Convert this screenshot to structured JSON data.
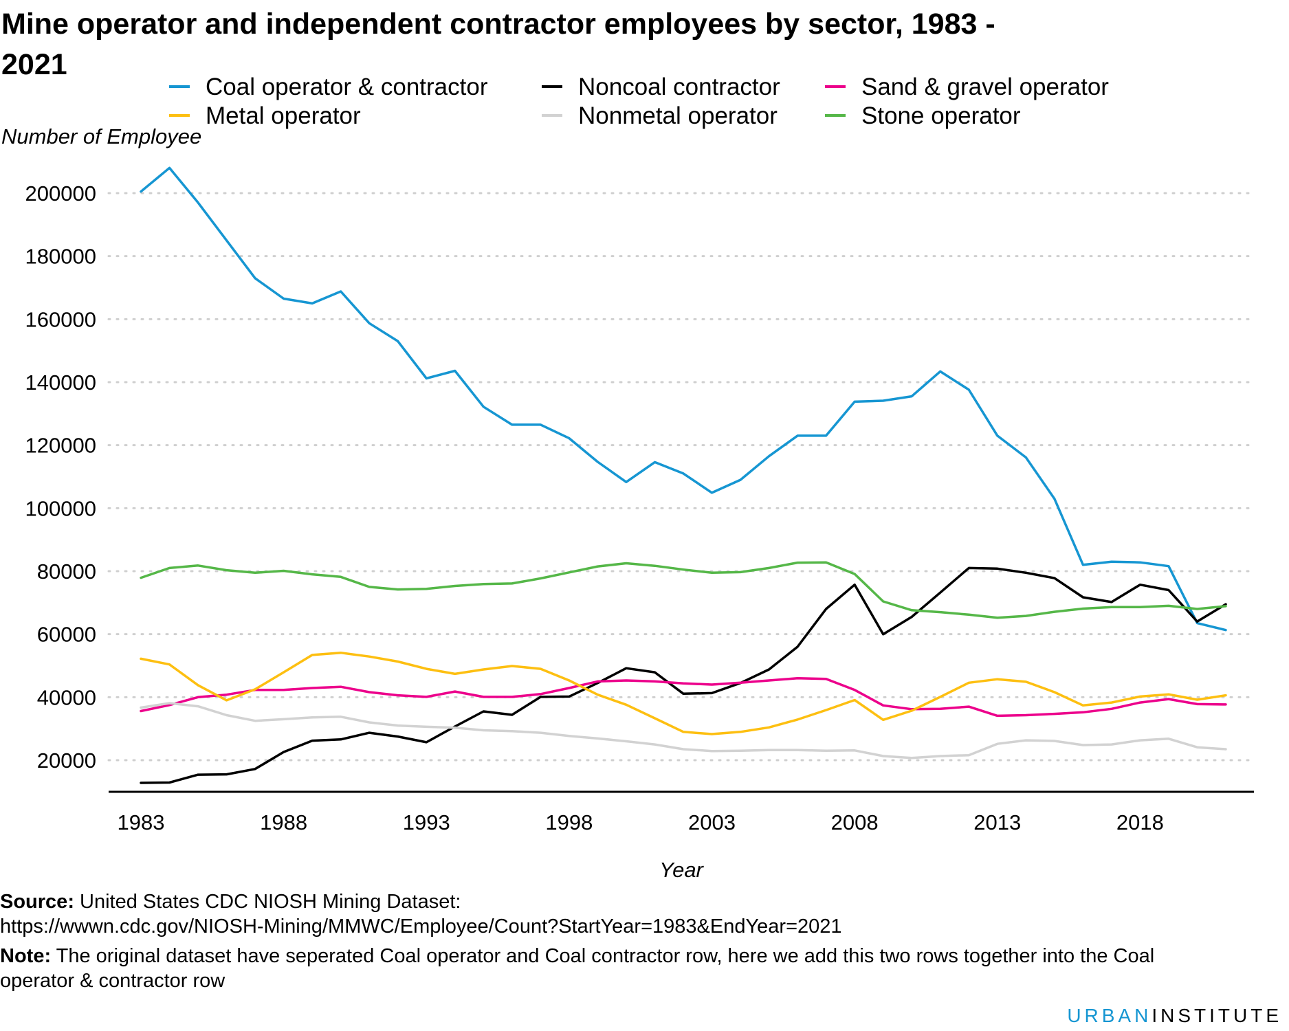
{
  "chart_data": {
    "type": "line",
    "title": "Mine operator and independent contractor employees by sector, 1983 - 2021",
    "title_line1": "Mine operator and independent contractor employees by sector, 1983 -",
    "title_line2": "2021",
    "xlabel": "Year",
    "ylabel": "Number of Employee",
    "x": [
      1983,
      1984,
      1985,
      1986,
      1987,
      1988,
      1989,
      1990,
      1991,
      1992,
      1993,
      1994,
      1995,
      1996,
      1997,
      1998,
      1999,
      2000,
      2001,
      2002,
      2003,
      2004,
      2005,
      2006,
      2007,
      2008,
      2009,
      2010,
      2011,
      2012,
      2013,
      2014,
      2015,
      2016,
      2017,
      2018,
      2019,
      2020,
      2021
    ],
    "xticks": [
      "1983",
      "1988",
      "1993",
      "1998",
      "2003",
      "2008",
      "2013",
      "2018"
    ],
    "xtick_values": [
      1983,
      1988,
      1993,
      1998,
      2003,
      2008,
      2013,
      2018
    ],
    "yticks": [
      "20000",
      "40000",
      "60000",
      "80000",
      "100000",
      "120000",
      "140000",
      "160000",
      "180000",
      "200000"
    ],
    "ytick_values": [
      20000,
      40000,
      60000,
      80000,
      100000,
      120000,
      140000,
      160000,
      180000,
      200000
    ],
    "xlim": [
      1983,
      2021
    ],
    "ylim": [
      10000,
      210000
    ],
    "grid": "horizontal dotted",
    "legend_position": "top",
    "series": [
      {
        "name": "Coal operator & contractor",
        "color": "#1696d2",
        "values": [
          200500,
          208000,
          197000,
          185000,
          173000,
          166500,
          165000,
          168800,
          158700,
          153000,
          141200,
          143600,
          132200,
          126500,
          126500,
          122200,
          114700,
          108300,
          114600,
          111000,
          104900,
          109000,
          116500,
          123000,
          123000,
          133800,
          134100,
          135500,
          143400,
          137600,
          123000,
          116100,
          103000,
          82000,
          83000,
          82800,
          81600,
          63500,
          61300
        ]
      },
      {
        "name": "Noncoal contractor",
        "color": "#000000",
        "values": [
          12800,
          12900,
          15400,
          15500,
          17200,
          22600,
          26200,
          26600,
          28700,
          27500,
          25700,
          30700,
          35500,
          34400,
          40100,
          40200,
          44500,
          49200,
          47900,
          41100,
          41300,
          44500,
          48800,
          56000,
          68000,
          75700,
          60000,
          65500,
          73200,
          81000,
          80800,
          79500,
          77800,
          71700,
          70200,
          75700,
          74000,
          64000,
          69500
        ]
      },
      {
        "name": "Sand & gravel operator",
        "color": "#ec008b",
        "values": [
          35600,
          37500,
          40000,
          40800,
          42300,
          42300,
          42900,
          43300,
          41600,
          40600,
          40100,
          41800,
          40100,
          40100,
          41000,
          42900,
          45000,
          45300,
          45000,
          44400,
          44000,
          44600,
          45300,
          46000,
          45800,
          42300,
          37400,
          36200,
          36300,
          37000,
          34100,
          34300,
          34700,
          35200,
          36300,
          38300,
          39400,
          37800,
          37700
        ]
      },
      {
        "name": "Metal operator",
        "color": "#fdbf11",
        "values": [
          52200,
          50400,
          43800,
          39000,
          42500,
          47900,
          53400,
          54100,
          52900,
          51300,
          49000,
          47400,
          48800,
          49900,
          49000,
          45300,
          40800,
          37600,
          33300,
          29000,
          28300,
          29000,
          30400,
          32900,
          35900,
          39100,
          32800,
          35700,
          40100,
          44600,
          45700,
          44900,
          41600,
          37400,
          38300,
          40200,
          40900,
          39200,
          40600
        ]
      },
      {
        "name": "Nonmetal operator",
        "color": "#d2d2d2",
        "values": [
          36700,
          38100,
          37100,
          34300,
          32500,
          33000,
          33600,
          33800,
          32000,
          31000,
          30600,
          30300,
          29500,
          29200,
          28700,
          27700,
          26900,
          26000,
          25000,
          23500,
          22900,
          23000,
          23200,
          23200,
          23000,
          23100,
          21300,
          20700,
          21300,
          21600,
          25200,
          26300,
          26100,
          24800,
          25000,
          26300,
          26800,
          24100,
          23500
        ]
      },
      {
        "name": "Stone operator",
        "color": "#55b748",
        "values": [
          77900,
          81000,
          81800,
          80300,
          79500,
          80100,
          79000,
          78200,
          75000,
          74200,
          74400,
          75300,
          75900,
          76100,
          77700,
          79600,
          81500,
          82500,
          81700,
          80500,
          79500,
          79700,
          81000,
          82700,
          82800,
          79100,
          70400,
          67600,
          67000,
          66200,
          65200,
          65800,
          67100,
          68100,
          68600,
          68600,
          69000,
          68000,
          68900
        ]
      }
    ]
  },
  "footer": {
    "source_label": "Source:",
    "source_text": " United States CDC NIOSH Mining Dataset:",
    "source_url": "https://wwwn.cdc.gov/NIOSH-Mining/MMWC/Employee/Count?StartYear=1983&EndYear=2021",
    "note_label": "Note:",
    "note_text": " The original dataset have seperated Coal operator and Coal contractor row, here we add this two rows together into the Coal",
    "note_text2": "operator & contractor row"
  },
  "brand": {
    "part1": "URBAN",
    "part2": "INSTITUTE"
  }
}
